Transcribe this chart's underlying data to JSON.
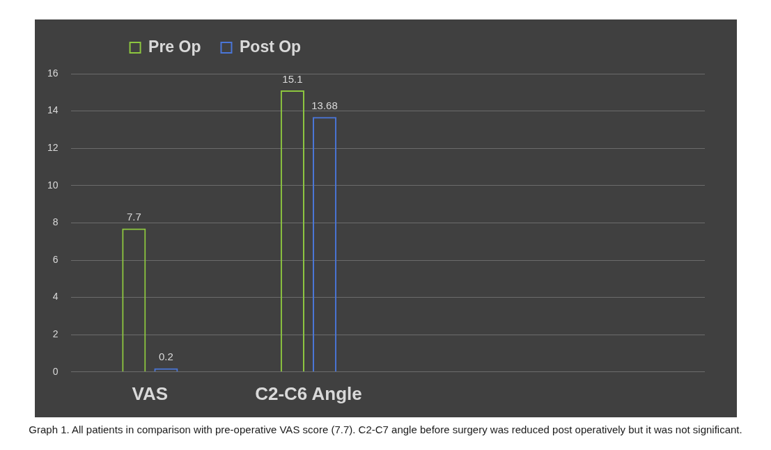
{
  "chart_data": {
    "type": "bar",
    "categories": [
      "VAS",
      "C2-C6 Angle",
      null,
      null
    ],
    "series": [
      {
        "name": "Pre Op",
        "color": "#8dc63f",
        "values": [
          7.7,
          15.1,
          null,
          null
        ]
      },
      {
        "name": "Post Op",
        "color": "#4a76d8",
        "values": [
          0.2,
          13.68,
          null,
          null
        ]
      }
    ],
    "ylim": [
      0,
      16
    ],
    "yticks": [
      0,
      2,
      4,
      6,
      8,
      10,
      12,
      14,
      16
    ],
    "grid": "y",
    "legend": "top",
    "data_labels": true,
    "annotations": [
      "Graph 1. All patients in comparison with pre-operative VAS score (7.7). C2-C7 angle before surgery was reduced post operatively but it was not significant."
    ]
  }
}
